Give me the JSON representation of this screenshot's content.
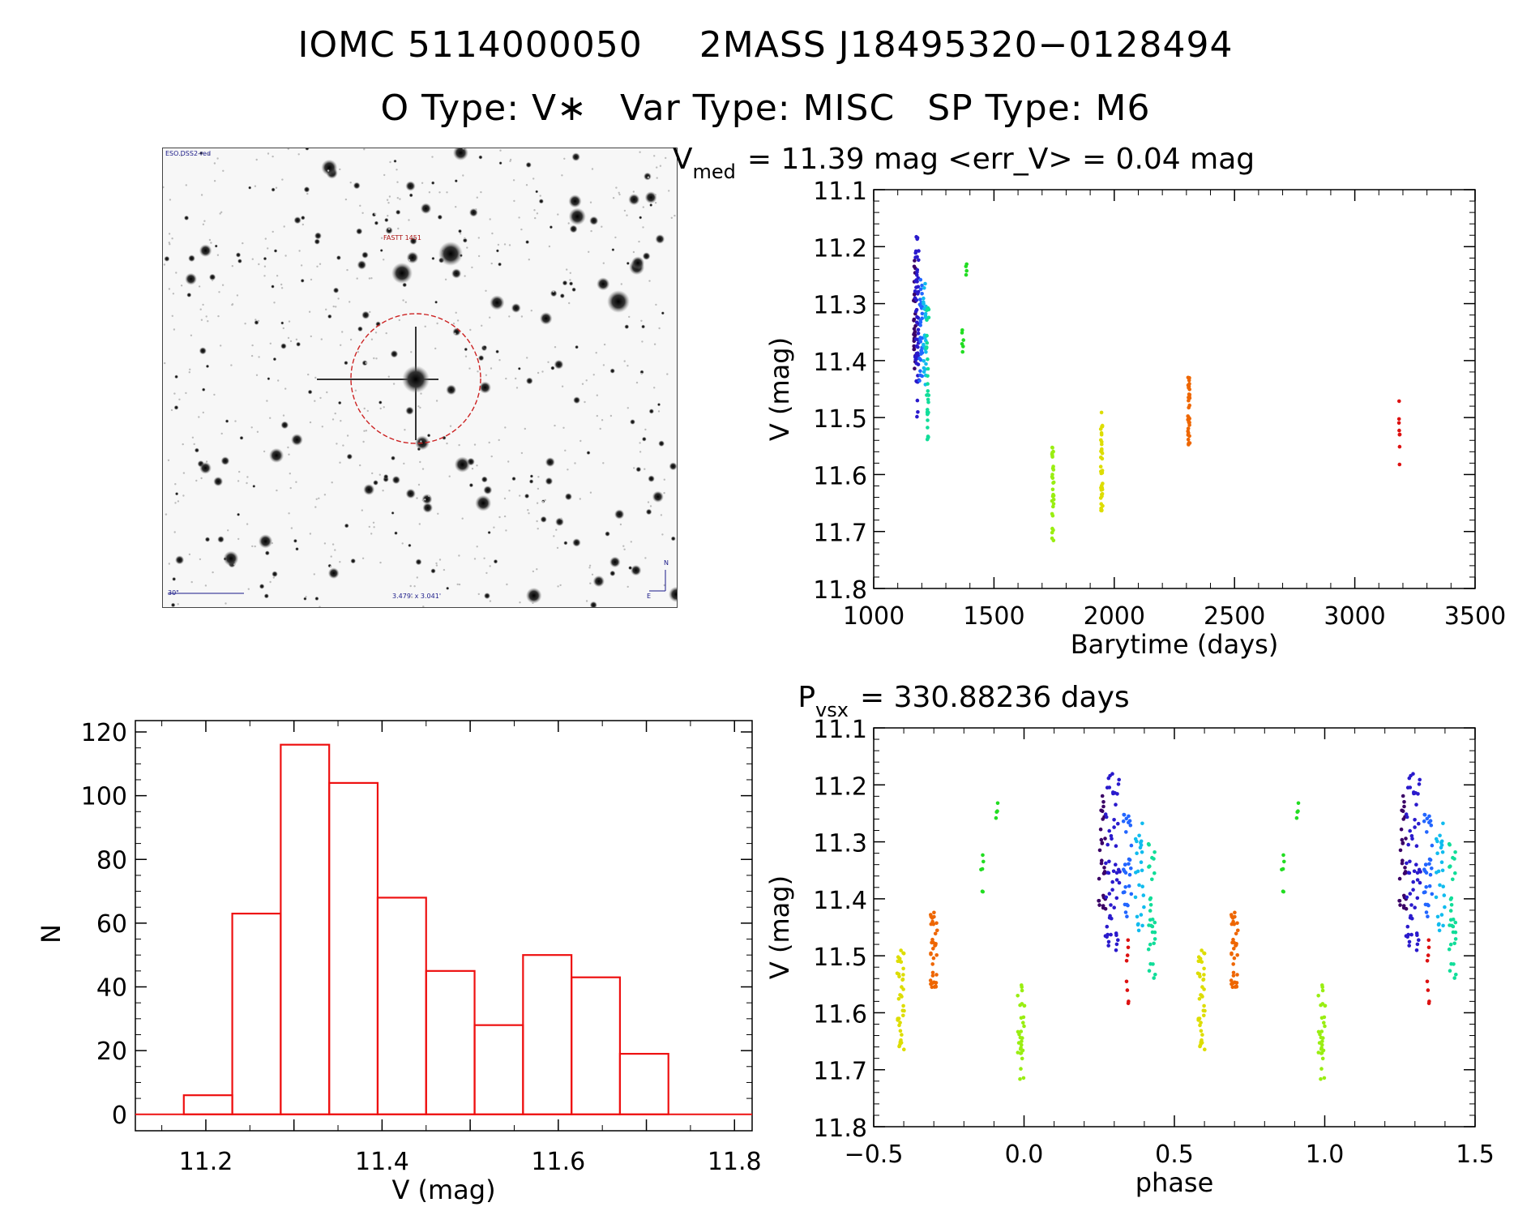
{
  "header": {
    "iomc": "IOMC 5114000050",
    "twomass": "2MASS J18495320−0128494",
    "otype": "O Type: V∗",
    "vartype": "Var Type: MISC",
    "sptype": "SP Type: M6"
  },
  "finder": {
    "survey": "ESO.DSS2-red",
    "target_label": "FASTT 1451",
    "scale_label": "30\"",
    "fov_label": "3.479' x 3.041'",
    "north_label": "N",
    "east_label": "E",
    "marker_color": "#cc2222"
  },
  "chart_data": [
    {
      "id": "lightcurve",
      "type": "scatter",
      "title_prefix": "V",
      "title_sub": "med",
      "title_rest": "= 11.39 mag <err_V> = 0.04 mag",
      "xlabel": "Barytime (days)",
      "ylabel": "V (mag)",
      "xlim": [
        1000,
        3500
      ],
      "ylim": [
        11.1,
        11.8
      ],
      "y_inverted": true,
      "xticks": [
        "1000",
        "1500",
        "2000",
        "2500",
        "3000",
        "3500"
      ],
      "yticks": [
        "11.1",
        "11.2",
        "11.3",
        "11.4",
        "11.5",
        "11.6",
        "11.7",
        "11.8"
      ],
      "groups": [
        {
          "x": 1170,
          "xspread": 4,
          "ymin": 11.2,
          "ymax": 11.42,
          "n": 30,
          "color": "#3a0066"
        },
        {
          "x": 1180,
          "xspread": 8,
          "ymin": 11.18,
          "ymax": 11.5,
          "n": 55,
          "color": "#2a1acc"
        },
        {
          "x": 1196,
          "xspread": 6,
          "ymin": 11.25,
          "ymax": 11.44,
          "n": 30,
          "color": "#2266ff"
        },
        {
          "x": 1212,
          "xspread": 6,
          "ymin": 11.26,
          "ymax": 11.46,
          "n": 25,
          "color": "#11bbee"
        },
        {
          "x": 1224,
          "xspread": 5,
          "ymin": 11.3,
          "ymax": 11.54,
          "n": 30,
          "color": "#11dd99"
        },
        {
          "x": 1370,
          "xspread": 3,
          "ymin": 11.32,
          "ymax": 11.39,
          "n": 6,
          "color": "#22dd22"
        },
        {
          "x": 1385,
          "xspread": 2,
          "ymin": 11.23,
          "ymax": 11.26,
          "n": 4,
          "color": "#22dd22"
        },
        {
          "x": 1745,
          "xspread": 4,
          "ymin": 11.55,
          "ymax": 11.73,
          "n": 30,
          "color": "#99ee11"
        },
        {
          "x": 1948,
          "xspread": 4,
          "ymin": 11.49,
          "ymax": 11.67,
          "n": 40,
          "color": "#dddd00"
        },
        {
          "x": 2310,
          "xspread": 4,
          "ymin": 11.42,
          "ymax": 11.56,
          "n": 35,
          "color": "#ee6600"
        },
        {
          "x": 3185,
          "xspread": 2,
          "ymin": 11.47,
          "ymax": 11.59,
          "n": 8,
          "color": "#dd1111"
        }
      ]
    },
    {
      "id": "phased",
      "type": "scatter",
      "title_prefix": "P",
      "title_sub": "vsx",
      "title_rest": "= 330.88236 days",
      "xlabel": "phase",
      "ylabel": "V (mag)",
      "xlim": [
        -0.5,
        1.5
      ],
      "ylim": [
        11.1,
        11.8
      ],
      "y_inverted": true,
      "xticks": [
        "−0.5",
        "0.0",
        "0.5",
        "1.0",
        "1.5"
      ],
      "yticks": [
        "11.1",
        "11.2",
        "11.3",
        "11.4",
        "11.5",
        "11.6",
        "11.7",
        "11.8"
      ],
      "groups": [
        {
          "x": 0.26,
          "xspread": 0.012,
          "ymin": 11.2,
          "ymax": 11.42,
          "n": 30,
          "color": "#3a0066"
        },
        {
          "x": 0.295,
          "xspread": 0.025,
          "ymin": 11.18,
          "ymax": 11.5,
          "n": 55,
          "color": "#2a1acc"
        },
        {
          "x": 0.345,
          "xspread": 0.015,
          "ymin": 11.25,
          "ymax": 11.44,
          "n": 30,
          "color": "#2266ff"
        },
        {
          "x": 0.385,
          "xspread": 0.015,
          "ymin": 11.26,
          "ymax": 11.46,
          "n": 25,
          "color": "#11bbee"
        },
        {
          "x": 0.425,
          "xspread": 0.012,
          "ymin": 11.3,
          "ymax": 11.54,
          "n": 30,
          "color": "#11dd99"
        },
        {
          "x": -0.14,
          "xspread": 0.005,
          "ymin": 11.32,
          "ymax": 11.39,
          "n": 6,
          "color": "#22dd22"
        },
        {
          "x": -0.09,
          "xspread": 0.004,
          "ymin": 11.23,
          "ymax": 11.26,
          "n": 4,
          "color": "#22dd22"
        },
        {
          "x": -0.01,
          "xspread": 0.012,
          "ymin": 11.55,
          "ymax": 11.73,
          "n": 30,
          "color": "#99ee11"
        },
        {
          "x": -0.41,
          "xspread": 0.012,
          "ymin": 11.49,
          "ymax": 11.67,
          "n": 40,
          "color": "#dddd00"
        },
        {
          "x": -0.3,
          "xspread": 0.012,
          "ymin": 11.42,
          "ymax": 11.56,
          "n": 35,
          "color": "#ee6600"
        },
        {
          "x": 0.345,
          "xspread": 0.004,
          "ymin": 11.47,
          "ymax": 11.59,
          "n": 8,
          "color": "#dd1111"
        }
      ],
      "period_offset": 1.0
    },
    {
      "id": "histogram",
      "type": "bar",
      "xlabel": "V (mag)",
      "ylabel": "N",
      "xlim": [
        11.12,
        11.82
      ],
      "ylim": [
        0,
        120
      ],
      "xticks": [
        "11.2",
        "11.4",
        "11.6",
        "11.8"
      ],
      "yticks": [
        "0",
        "20",
        "40",
        "60",
        "80",
        "100",
        "120"
      ],
      "bin_edges": [
        11.175,
        11.23,
        11.285,
        11.34,
        11.395,
        11.45,
        11.505,
        11.56,
        11.615,
        11.67,
        11.725
      ],
      "counts": [
        6,
        63,
        116,
        104,
        68,
        45,
        28,
        50,
        43,
        19
      ],
      "color": "#ee1111"
    }
  ]
}
